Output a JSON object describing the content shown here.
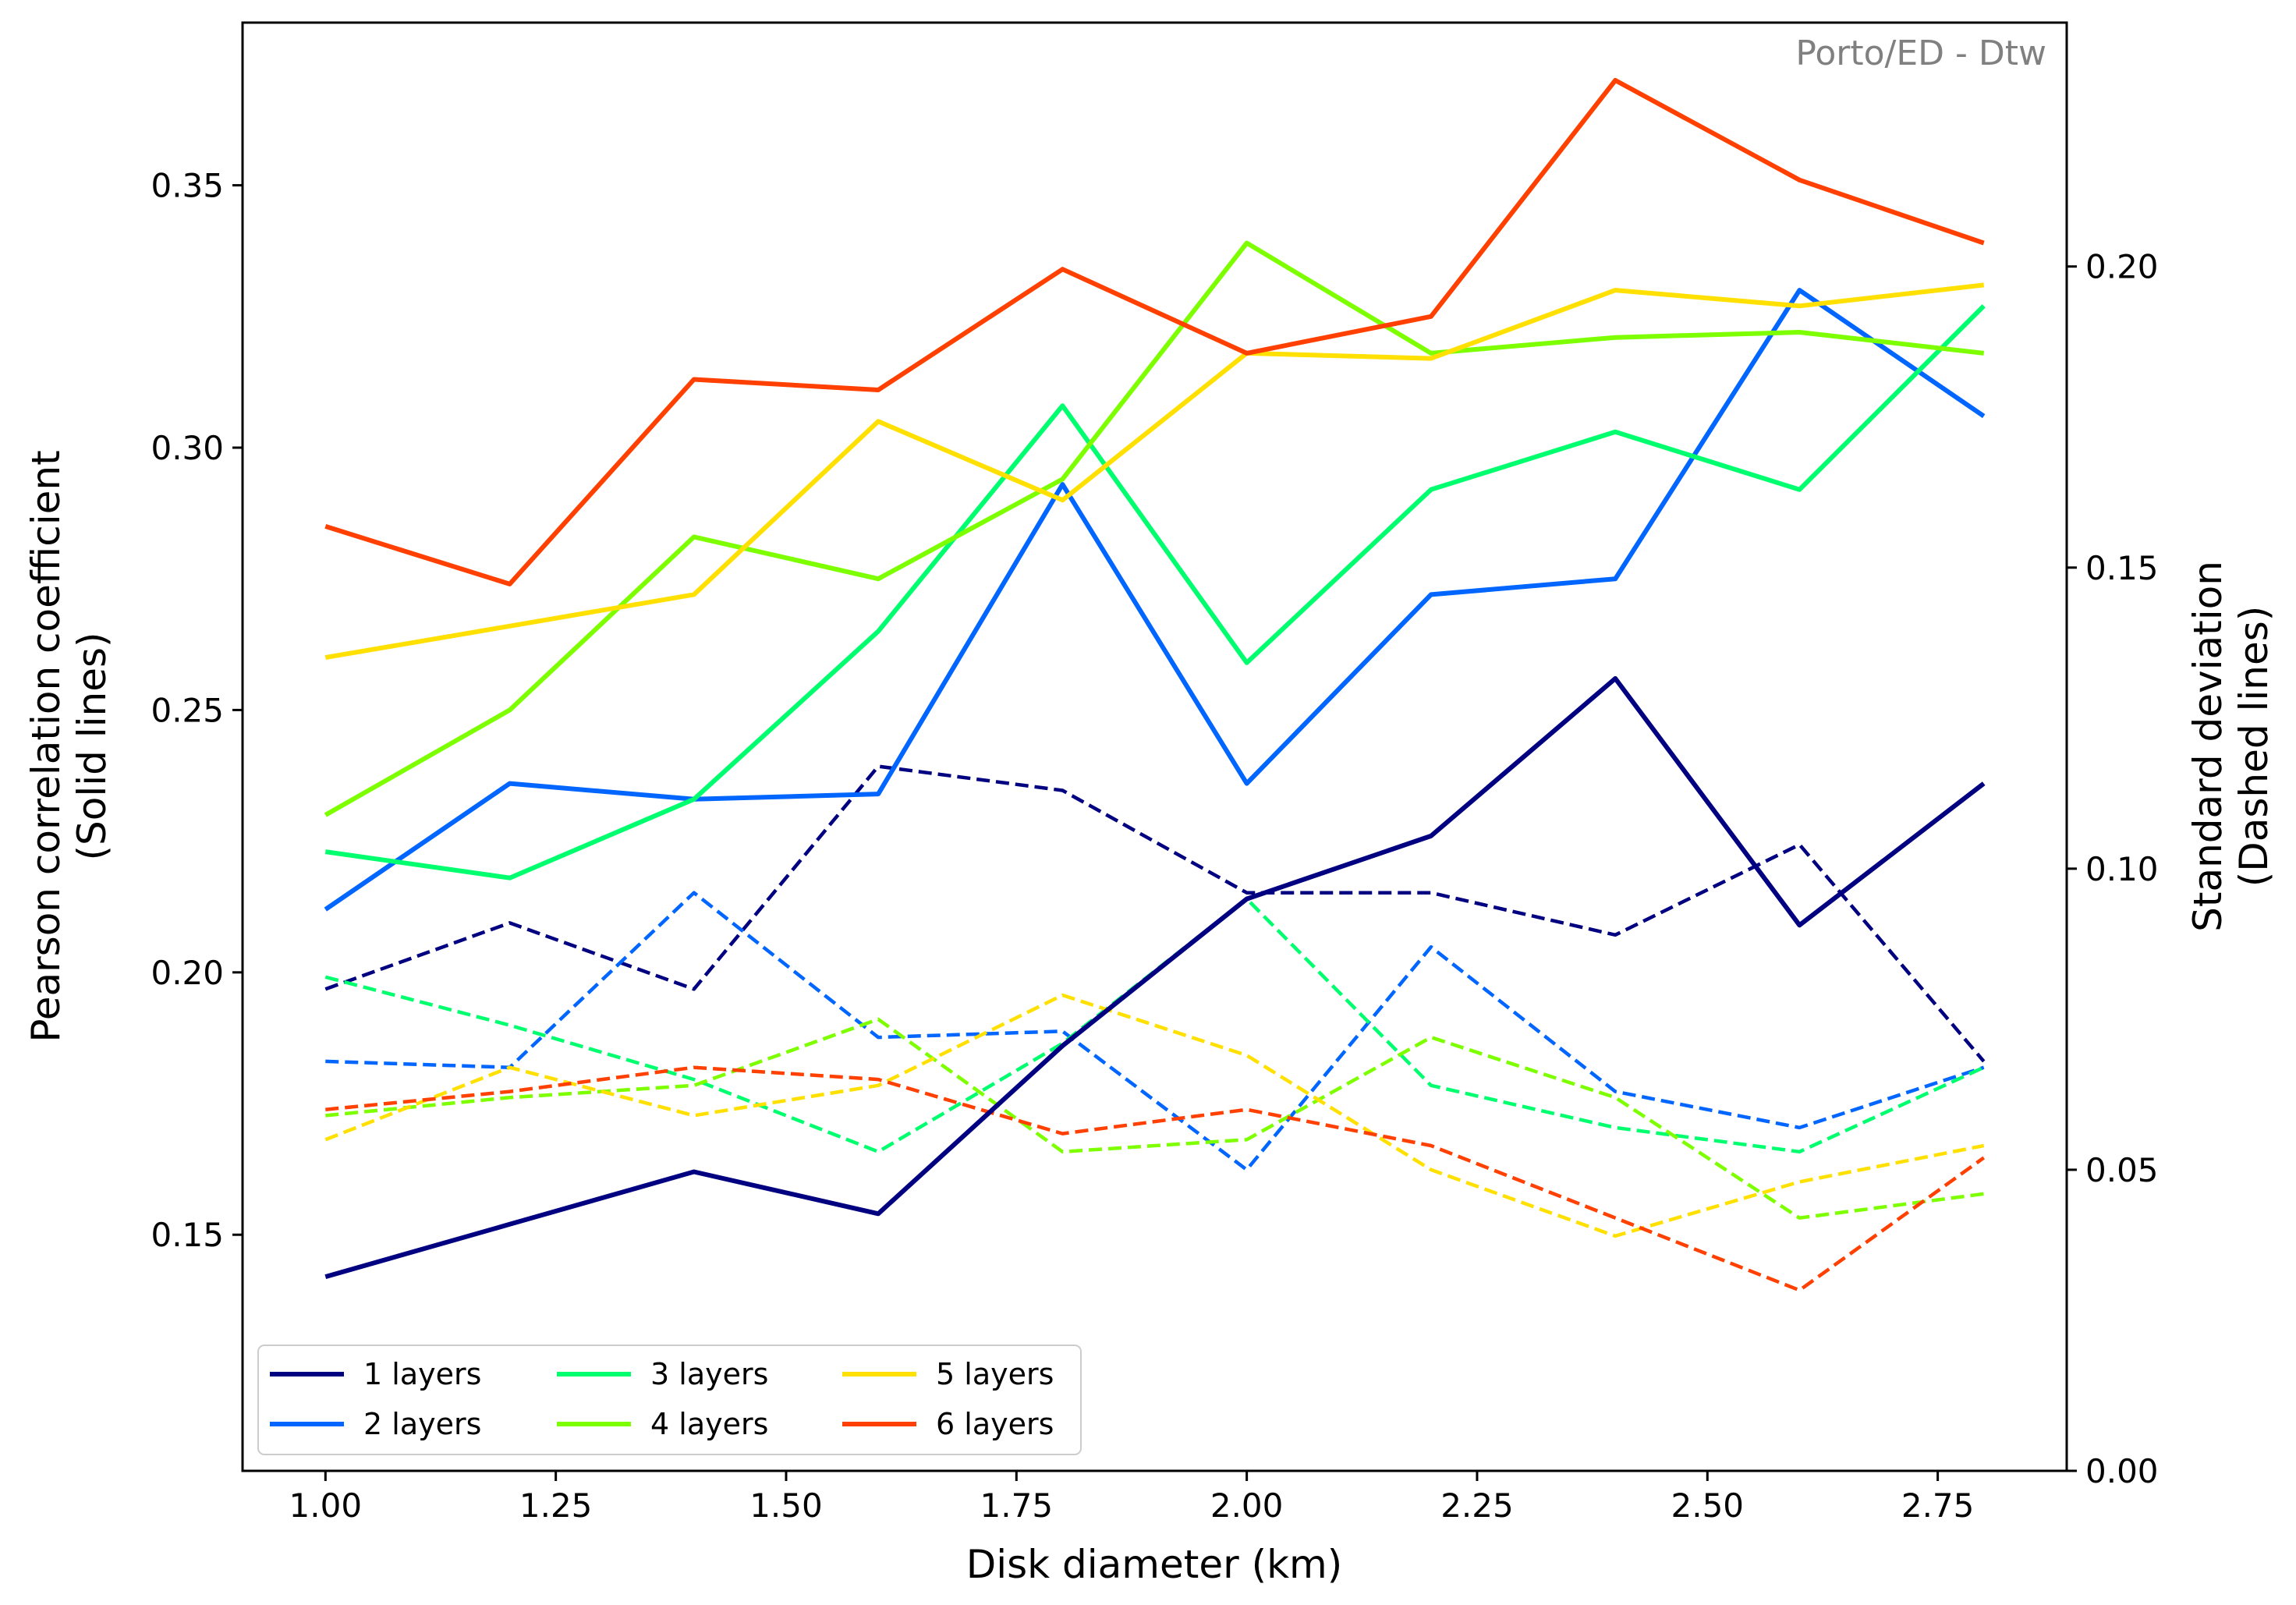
{
  "chart_data": {
    "type": "line",
    "annotation": "Porto/ED - Dtw",
    "xlabel": "Disk diameter (km)",
    "ylabel_left": [
      "Pearson correlation coefficient",
      "(Solid lines)"
    ],
    "ylabel_right": [
      "Standard deviation",
      "(Dashed lines)"
    ],
    "xlim": [
      0.91,
      2.89
    ],
    "ylim_left": [
      0.105,
      0.381
    ],
    "ylim_right": [
      0.0,
      0.2405
    ],
    "x_ticks": [
      "1.00",
      "1.25",
      "1.50",
      "1.75",
      "2.00",
      "2.25",
      "2.50",
      "2.75"
    ],
    "x_tick_values": [
      1.0,
      1.25,
      1.5,
      1.75,
      2.0,
      2.25,
      2.5,
      2.75
    ],
    "y_left_ticks": [
      "0.15",
      "0.20",
      "0.25",
      "0.30",
      "0.35"
    ],
    "y_left_tick_values": [
      0.15,
      0.2,
      0.25,
      0.3,
      0.35
    ],
    "y_right_ticks": [
      "0.00",
      "0.05",
      "0.10",
      "0.15",
      "0.20"
    ],
    "y_right_tick_values": [
      0.0,
      0.05,
      0.1,
      0.15,
      0.2
    ],
    "grid": false,
    "legend_placement": "lower-left",
    "x": [
      1.0,
      1.2,
      1.4,
      1.6,
      1.8,
      2.0,
      2.2,
      2.4,
      2.6,
      2.8
    ],
    "series": [
      {
        "name": "1 layers",
        "color": "#000080",
        "pearson": [
          0.142,
          0.152,
          0.162,
          0.154,
          0.186,
          0.214,
          0.226,
          0.256,
          0.209,
          0.236
        ],
        "std": [
          0.08,
          0.091,
          0.08,
          0.117,
          0.113,
          0.096,
          0.096,
          0.089,
          0.104,
          0.068
        ]
      },
      {
        "name": "2 layers",
        "color": "#0066ff",
        "pearson": [
          0.212,
          0.236,
          0.233,
          0.234,
          0.293,
          0.236,
          0.272,
          0.275,
          0.33,
          0.306
        ],
        "std": [
          0.068,
          0.067,
          0.096,
          0.072,
          0.073,
          0.05,
          0.087,
          0.063,
          0.057,
          0.067
        ]
      },
      {
        "name": "3 layers",
        "color": "#00ff6e",
        "pearson": [
          0.223,
          0.218,
          0.233,
          0.265,
          0.308,
          0.259,
          0.292,
          0.303,
          0.292,
          0.327
        ],
        "std": [
          0.082,
          0.074,
          0.065,
          0.053,
          0.071,
          0.095,
          0.064,
          0.057,
          0.053,
          0.067
        ]
      },
      {
        "name": "4 layers",
        "color": "#7dff00",
        "pearson": [
          0.23,
          0.25,
          0.283,
          0.275,
          0.294,
          0.339,
          0.318,
          0.321,
          0.322,
          0.318
        ],
        "std": [
          0.059,
          0.062,
          0.064,
          0.075,
          0.053,
          0.055,
          0.072,
          0.062,
          0.042,
          0.046
        ]
      },
      {
        "name": "5 layers",
        "color": "#ffe000",
        "pearson": [
          0.26,
          0.266,
          0.272,
          0.305,
          0.29,
          0.318,
          0.317,
          0.33,
          0.327,
          0.331
        ],
        "std": [
          0.055,
          0.067,
          0.059,
          0.064,
          0.079,
          0.069,
          0.05,
          0.039,
          0.048,
          0.054
        ]
      },
      {
        "name": "6 layers",
        "color": "#ff4000",
        "pearson": [
          0.285,
          0.274,
          0.313,
          0.311,
          0.334,
          0.318,
          0.325,
          0.37,
          0.351,
          0.339
        ],
        "std": [
          0.06,
          0.063,
          0.067,
          0.065,
          0.056,
          0.06,
          0.054,
          0.042,
          0.03,
          0.052
        ]
      }
    ]
  }
}
